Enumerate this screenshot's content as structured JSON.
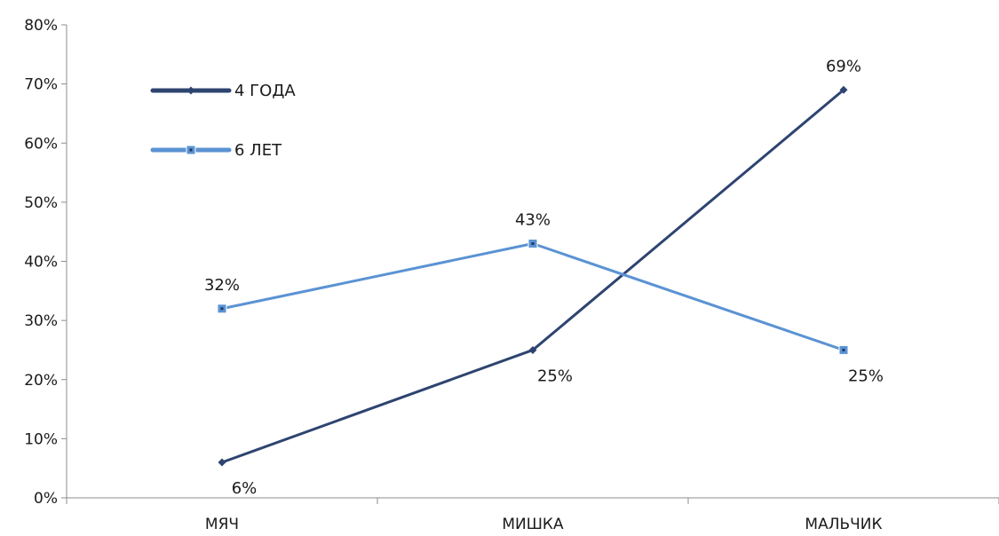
{
  "chart_data": {
    "type": "line",
    "title": "",
    "xlabel": "",
    "ylabel": "",
    "categories": [
      "МЯЧ",
      "МИШКА",
      "МАЛЬЧИК"
    ],
    "yticks": [
      "0%",
      "10%",
      "20%",
      "30%",
      "40%",
      "50%",
      "60%",
      "70%",
      "80%"
    ],
    "ylim": [
      0,
      80
    ],
    "grid": false,
    "legend_position": "top-left",
    "series": [
      {
        "name": "4 ГОДА",
        "values": [
          6,
          25,
          69
        ],
        "labels": [
          "6%",
          "25%",
          "69%"
        ],
        "color": "#2e4470",
        "marker": "diamond"
      },
      {
        "name": "6 ЛЕТ",
        "values": [
          32,
          43,
          25
        ],
        "labels": [
          "32%",
          "43%",
          "25%"
        ],
        "color": "#5b93d3",
        "marker": "square"
      }
    ]
  }
}
